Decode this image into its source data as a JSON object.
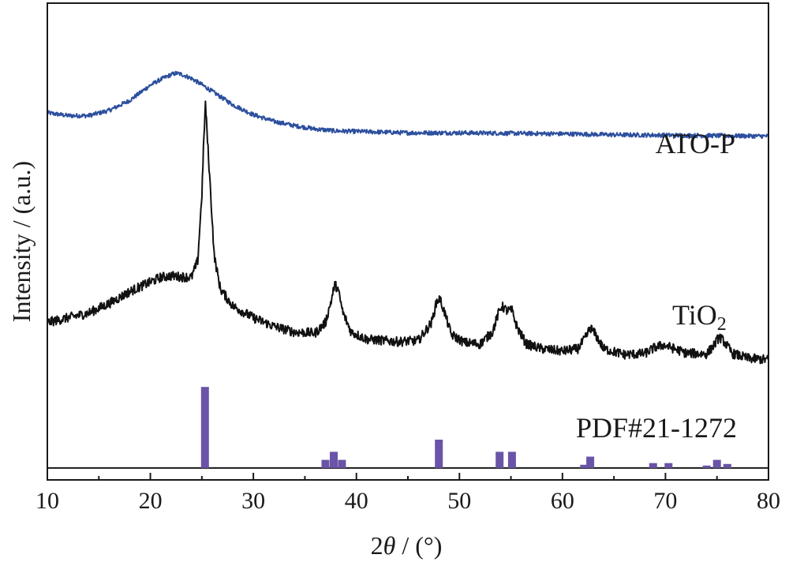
{
  "chart_data": {
    "type": "line",
    "xlabel_prefix": "2",
    "xlabel_var": "θ",
    "xlabel_suffix": " / (°)",
    "ylabel": "Intensity / (a.u.)",
    "xlim": [
      10,
      80
    ],
    "ylim": [
      0,
      100
    ],
    "xticks": [
      "10",
      "20",
      "30",
      "40",
      "50",
      "60",
      "70",
      "80"
    ],
    "colors": {
      "ato": "#2c4f9e",
      "tio2": "#111111",
      "pdf": "#6a54a8",
      "axis": "#1a1a1a"
    },
    "series": [
      {
        "name": "ATO-P",
        "key": "ato",
        "points": [
          [
            10,
            77.0
          ],
          [
            12,
            76.4
          ],
          [
            14,
            76.4
          ],
          [
            16,
            77.5
          ],
          [
            18,
            79.6
          ],
          [
            19,
            81.2
          ],
          [
            20,
            82.8
          ],
          [
            21,
            84.0
          ],
          [
            22,
            85.0
          ],
          [
            22.5,
            85.3
          ],
          [
            23,
            85.1
          ],
          [
            24,
            84.2
          ],
          [
            25,
            82.9
          ],
          [
            26,
            81.5
          ],
          [
            27,
            80.1
          ],
          [
            28,
            78.7
          ],
          [
            30,
            76.6
          ],
          [
            32,
            75.2
          ],
          [
            34,
            74.3
          ],
          [
            36,
            73.6
          ],
          [
            38,
            73.2
          ],
          [
            40,
            73.1
          ],
          [
            45,
            72.8
          ],
          [
            50,
            72.8
          ],
          [
            55,
            72.7
          ],
          [
            60,
            72.6
          ],
          [
            65,
            72.4
          ],
          [
            70,
            72.3
          ],
          [
            75,
            72.2
          ],
          [
            80,
            72.1
          ]
        ]
      },
      {
        "name": "TiO2",
        "name_main": "TiO",
        "name_sub": "2",
        "key": "tio2",
        "points": [
          [
            10,
            33.0
          ],
          [
            12,
            34.0
          ],
          [
            14,
            35.0
          ],
          [
            16,
            37.0
          ],
          [
            18,
            39.5
          ],
          [
            20,
            41.5
          ],
          [
            21,
            42.5
          ],
          [
            22,
            42.8
          ],
          [
            23,
            42.6
          ],
          [
            24,
            42.5
          ],
          [
            24.6,
            46.0
          ],
          [
            25.0,
            60.0
          ],
          [
            25.2,
            72.0
          ],
          [
            25.35,
            79.0
          ],
          [
            25.5,
            73.0
          ],
          [
            25.8,
            62.0
          ],
          [
            26.2,
            47.0
          ],
          [
            26.8,
            40.0
          ],
          [
            28,
            36.5
          ],
          [
            30,
            34.0
          ],
          [
            32,
            32.2
          ],
          [
            34,
            31.0
          ],
          [
            36,
            30.8
          ],
          [
            37,
            33.0
          ],
          [
            37.6,
            38.0
          ],
          [
            37.9,
            41.0
          ],
          [
            38.2,
            40.0
          ],
          [
            38.7,
            35.0
          ],
          [
            39.5,
            31.0
          ],
          [
            41,
            29.5
          ],
          [
            44,
            29.0
          ],
          [
            46,
            29.2
          ],
          [
            47.3,
            33.0
          ],
          [
            47.8,
            37.5
          ],
          [
            48.1,
            38.0
          ],
          [
            48.5,
            35.5
          ],
          [
            49.2,
            30.5
          ],
          [
            50.5,
            28.8
          ],
          [
            52,
            28.5
          ],
          [
            53.2,
            31.0
          ],
          [
            53.8,
            35.0
          ],
          [
            54.1,
            36.5
          ],
          [
            54.6,
            35.5
          ],
          [
            55.1,
            35.5
          ],
          [
            55.6,
            32.0
          ],
          [
            56.5,
            28.5
          ],
          [
            58,
            27.5
          ],
          [
            60,
            27.0
          ],
          [
            61.5,
            27.5
          ],
          [
            62.3,
            30.0
          ],
          [
            62.7,
            32.0
          ],
          [
            63.2,
            30.5
          ],
          [
            64,
            27.5
          ],
          [
            66,
            26.3
          ],
          [
            68,
            26.5
          ],
          [
            69,
            27.8
          ],
          [
            69.8,
            28.3
          ],
          [
            70.6,
            27.7
          ],
          [
            72,
            26.6
          ],
          [
            74,
            26.4
          ],
          [
            74.8,
            28.5
          ],
          [
            75.2,
            30.0
          ],
          [
            75.7,
            29.0
          ],
          [
            76.5,
            26.5
          ],
          [
            78,
            25.5
          ],
          [
            80,
            25.2
          ]
        ]
      }
    ],
    "reference": {
      "name": "PDF#21-1272",
      "key": "pdf",
      "baseline": 2.5,
      "sticks": [
        [
          25.3,
          100
        ],
        [
          37.0,
          10
        ],
        [
          37.8,
          20
        ],
        [
          38.6,
          10
        ],
        [
          48.0,
          35
        ],
        [
          53.9,
          20
        ],
        [
          55.1,
          20
        ],
        [
          62.1,
          4
        ],
        [
          62.7,
          14
        ],
        [
          68.8,
          6
        ],
        [
          70.3,
          6
        ],
        [
          74.0,
          3
        ],
        [
          75.0,
          10
        ],
        [
          76.0,
          5
        ]
      ]
    }
  }
}
